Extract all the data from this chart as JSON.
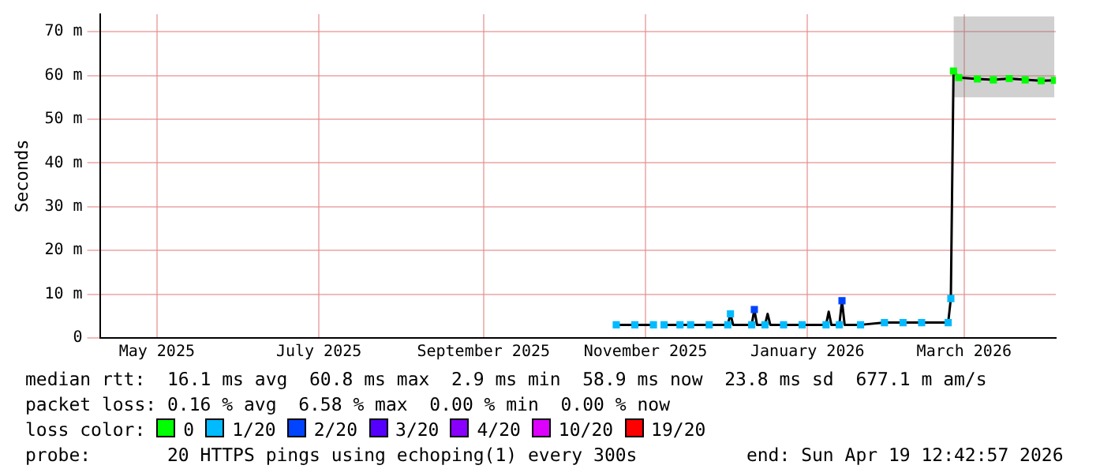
{
  "chart_data": {
    "type": "line",
    "ylabel": "Seconds",
    "xlim": [
      "2025-04-24T12:42",
      "2026-04-19T12:42"
    ],
    "xticks": [
      {
        "value": "2025-05-16",
        "label": "May 2025"
      },
      {
        "value": "2025-07-16",
        "label": "July 2025"
      },
      {
        "value": "2025-09-16",
        "label": "September 2025"
      },
      {
        "value": "2025-11-16",
        "label": "November 2025"
      },
      {
        "value": "2026-01-16",
        "label": "January 2026"
      },
      {
        "value": "2026-03-16",
        "label": "March 2026"
      }
    ],
    "ylim": [
      0,
      74
    ],
    "yticks": [
      0,
      {
        "value": 10,
        "label": "10 m"
      },
      {
        "value": 20,
        "label": "20 m"
      },
      {
        "value": 30,
        "label": "30 m"
      },
      {
        "value": 40,
        "label": "40 m"
      },
      {
        "value": 50,
        "label": "50 m"
      },
      {
        "value": 60,
        "label": "60 m"
      },
      {
        "value": 70,
        "label": "70 m"
      }
    ],
    "grid": true,
    "legend": "bottom",
    "series": [
      {
        "color": "#000000",
        "marker": "none",
        "x": [
          "2025-11-05",
          "2025-11-19",
          "2025-11-21",
          "2025-11-23",
          "2025-11-29",
          "2025-12-03",
          "2025-12-17",
          "2025-12-18",
          "2025-12-19",
          "2025-12-26",
          "2025-12-27",
          "2025-12-28",
          "2025-12-31",
          "2026-01-01",
          "2026-01-02",
          "2026-01-14",
          "2026-01-23",
          "2026-01-24",
          "2026-01-25",
          "2026-01-28",
          "2026-01-29",
          "2026-01-30",
          "2026-02-05",
          "2026-02-14",
          "2026-02-28",
          "2026-03-10",
          "2026-03-11",
          "2026-03-12",
          "2026-03-14",
          "2026-03-21",
          "2026-03-27",
          "2026-04-02",
          "2026-04-08",
          "2026-04-14",
          "2026-04-19"
        ],
        "values": [
          3,
          3,
          null,
          3,
          3,
          3,
          3,
          5.5,
          3,
          3,
          6.5,
          3,
          3,
          5.5,
          3,
          3,
          3,
          6,
          3,
          3,
          8.5,
          3,
          3,
          3.5,
          3.5,
          3.5,
          9,
          61,
          59.5,
          59.2,
          59,
          59.3,
          59,
          58.8,
          58.9
        ],
        "lower": [
          null,
          null,
          null,
          null,
          null,
          null,
          null,
          null,
          null,
          null,
          null,
          null,
          null,
          null,
          null,
          null,
          null,
          null,
          null,
          null,
          null,
          null,
          null,
          null,
          null,
          null,
          null,
          55,
          55,
          55,
          55,
          55,
          55,
          55,
          55
        ],
        "upper": [
          null,
          null,
          null,
          null,
          null,
          null,
          null,
          null,
          null,
          null,
          null,
          null,
          null,
          null,
          null,
          null,
          null,
          null,
          null,
          null,
          null,
          null,
          null,
          null,
          null,
          null,
          null,
          73.5,
          73.5,
          73.5,
          73.5,
          73.5,
          73.5,
          73.5,
          73.5
        ]
      },
      {
        "type": "scatter",
        "name": "0",
        "color": "#00ff00",
        "marker": "square",
        "x": [
          "2026-03-12",
          "2026-03-14",
          "2026-03-21",
          "2026-03-27",
          "2026-04-02",
          "2026-04-08",
          "2026-04-14",
          "2026-04-19"
        ],
        "values": [
          61,
          59.5,
          59.2,
          59,
          59.3,
          59,
          58.8,
          58.9
        ]
      },
      {
        "type": "scatter",
        "name": "1/20",
        "color": "#00bbff",
        "marker": "square",
        "x": [
          "2025-11-05",
          "2025-11-12",
          "2025-11-19",
          "2025-11-23",
          "2025-11-29",
          "2025-12-03",
          "2025-12-10",
          "2025-12-17",
          "2025-12-18",
          "2025-12-26",
          "2025-12-31",
          "2026-01-07",
          "2026-01-14",
          "2026-01-23",
          "2026-01-28",
          "2026-02-05",
          "2026-02-14",
          "2026-02-21",
          "2026-02-28",
          "2026-03-10",
          "2026-03-11"
        ],
        "values": [
          3,
          3,
          3,
          3,
          3,
          3,
          3,
          3,
          5.5,
          3,
          3,
          3,
          3,
          3,
          3,
          3,
          3.5,
          3.5,
          3.5,
          3.5,
          9
        ]
      },
      {
        "type": "scatter",
        "name": "2/20",
        "color": "#0044ff",
        "marker": "square",
        "x": [
          "2025-12-27",
          "2026-01-29"
        ],
        "values": [
          6.5,
          8.5
        ]
      },
      {
        "type": "scatter",
        "name": "3/20",
        "color": "#5500ff",
        "marker": "square"
      },
      {
        "type": "scatter",
        "name": "4/20",
        "color": "#8a00ff",
        "marker": "square"
      },
      {
        "type": "scatter",
        "name": "10/20",
        "color": "#dd00ff",
        "marker": "square"
      },
      {
        "type": "scatter",
        "name": "19/20",
        "color": "#ff0000",
        "marker": "square"
      }
    ],
    "annotations": [
      "median rtt:  16.1 ms avg  60.8 ms max  2.9 ms min  58.9 ms now  23.8 ms sd  677.1 m am/s",
      "packet loss: 0.16 % avg  6.58 % max  0.00 % min  0.00 % now",
      "loss color:",
      "probe:       20 HTTPS pings using echoping(1) every 300s          end: Sun Apr 19 12:42:57 2026"
    ]
  }
}
